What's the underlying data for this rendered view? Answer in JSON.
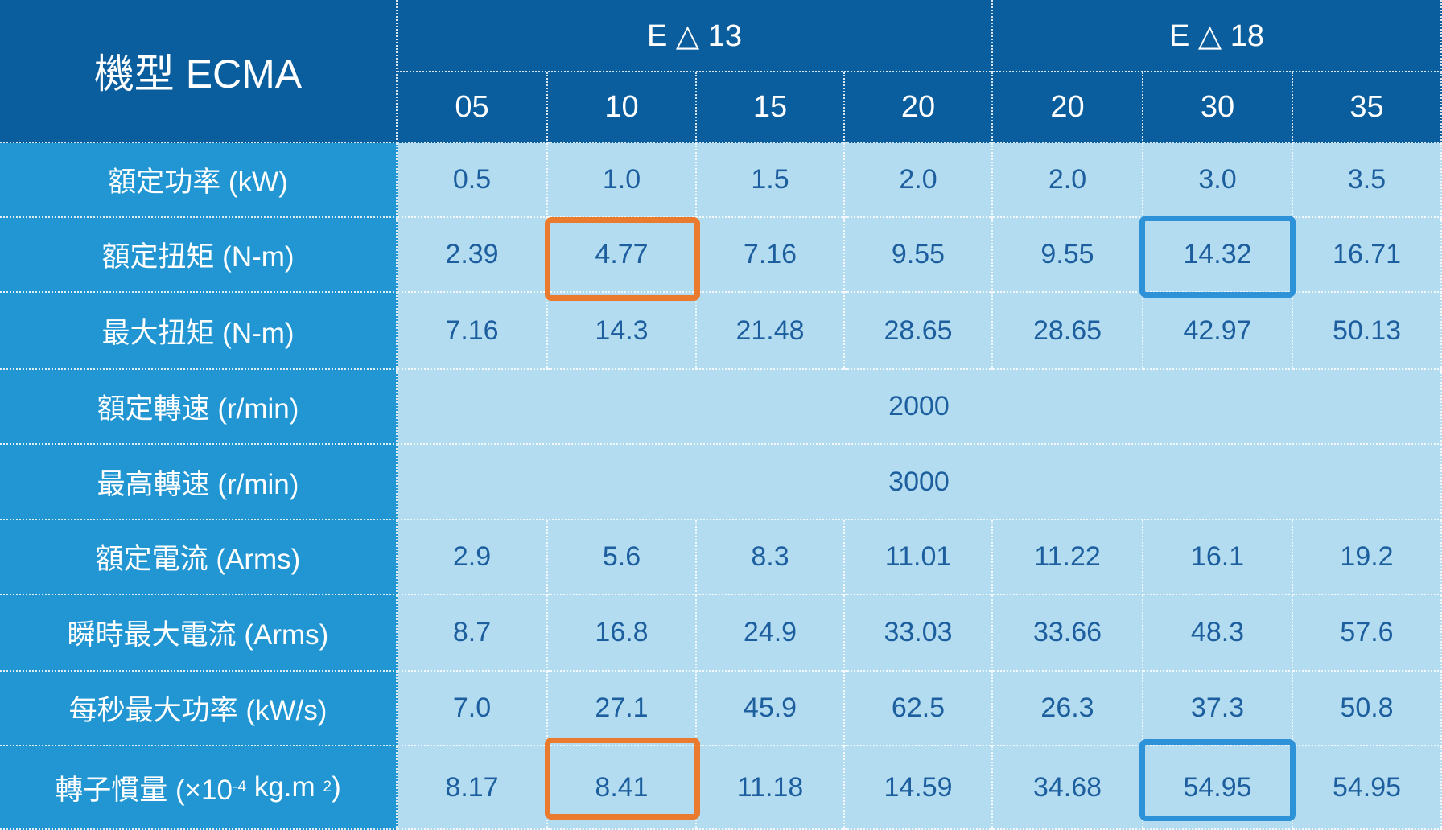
{
  "header": {
    "title": "機型 ECMA",
    "groups": [
      {
        "label": "E △ 13",
        "span": 4
      },
      {
        "label": "E △ 18",
        "span": 3
      }
    ],
    "models": [
      "05",
      "10",
      "15",
      "20",
      "20",
      "30",
      "35"
    ]
  },
  "rows": [
    {
      "label": [
        "額定功率 (kW)"
      ],
      "values": [
        "0.5",
        "1.0",
        "1.5",
        "2.0",
        "2.0",
        "3.0",
        "3.5"
      ]
    },
    {
      "label": [
        "額定扭矩 (N-m)"
      ],
      "values": [
        "2.39",
        "4.77",
        "7.16",
        "9.55",
        "9.55",
        "14.32",
        "16.71"
      ]
    },
    {
      "label": [
        "最大扭矩 (N-m)"
      ],
      "values": [
        "7.16",
        "14.3",
        "21.48",
        "28.65",
        "28.65",
        "42.97",
        "50.13"
      ]
    },
    {
      "label": [
        "額定轉速 (r/min)"
      ],
      "value": "2000"
    },
    {
      "label": [
        "最高轉速 (r/min)"
      ],
      "value": "3000"
    },
    {
      "label": [
        "額定電流 (Arms)"
      ],
      "values": [
        "2.9",
        "5.6",
        "8.3",
        "11.01",
        "11.22",
        "16.1",
        "19.2"
      ]
    },
    {
      "label": [
        "瞬時最大電流 (Arms)"
      ],
      "values": [
        "8.7",
        "16.8",
        "24.9",
        "33.03",
        "33.66",
        "48.3",
        "57.6"
      ]
    },
    {
      "label": [
        "每秒最大功率 (kW/s)"
      ],
      "values": [
        "7.0",
        "27.1",
        "45.9",
        "62.5",
        "26.3",
        "37.3",
        "50.8"
      ]
    },
    {
      "label": [
        "轉子慣量 (×10",
        "-4",
        " kg.m ",
        "2",
        ")"
      ],
      "values": [
        "8.17",
        "8.41",
        "11.18",
        "14.59",
        "34.68",
        "54.95",
        "54.95"
      ]
    }
  ]
}
